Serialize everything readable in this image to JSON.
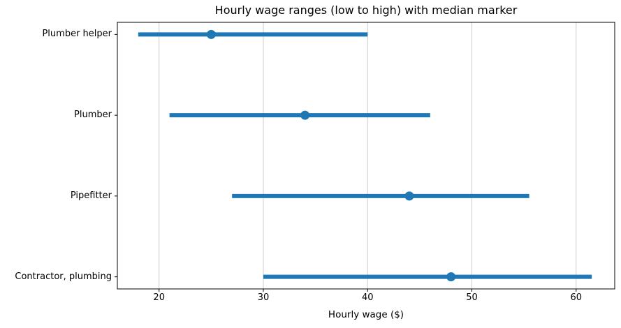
{
  "chart_data": {
    "type": "bar",
    "subtype": "horizontal-range-with-median-marker",
    "title": "Hourly wage ranges (low to high) with median marker",
    "xlabel": "Hourly wage ($)",
    "ylabel": "",
    "categories": [
      "Plumber helper",
      "Plumber",
      "Pipefitter",
      "Contractor, plumbing"
    ],
    "series": [
      {
        "name": "low",
        "values": [
          18,
          21,
          27,
          30
        ]
      },
      {
        "name": "median",
        "values": [
          25,
          34,
          44,
          48
        ]
      },
      {
        "name": "high",
        "values": [
          40,
          46,
          55.5,
          61.5
        ]
      }
    ],
    "xticks": [
      20,
      30,
      40,
      50,
      60
    ],
    "xlim": [
      16,
      63.7
    ],
    "grid": "vertical",
    "legend": "none",
    "accent_color": "#1f77b4",
    "grid_color": "#cccccc",
    "axis_color": "#000000",
    "background_color": "#ffffff"
  }
}
